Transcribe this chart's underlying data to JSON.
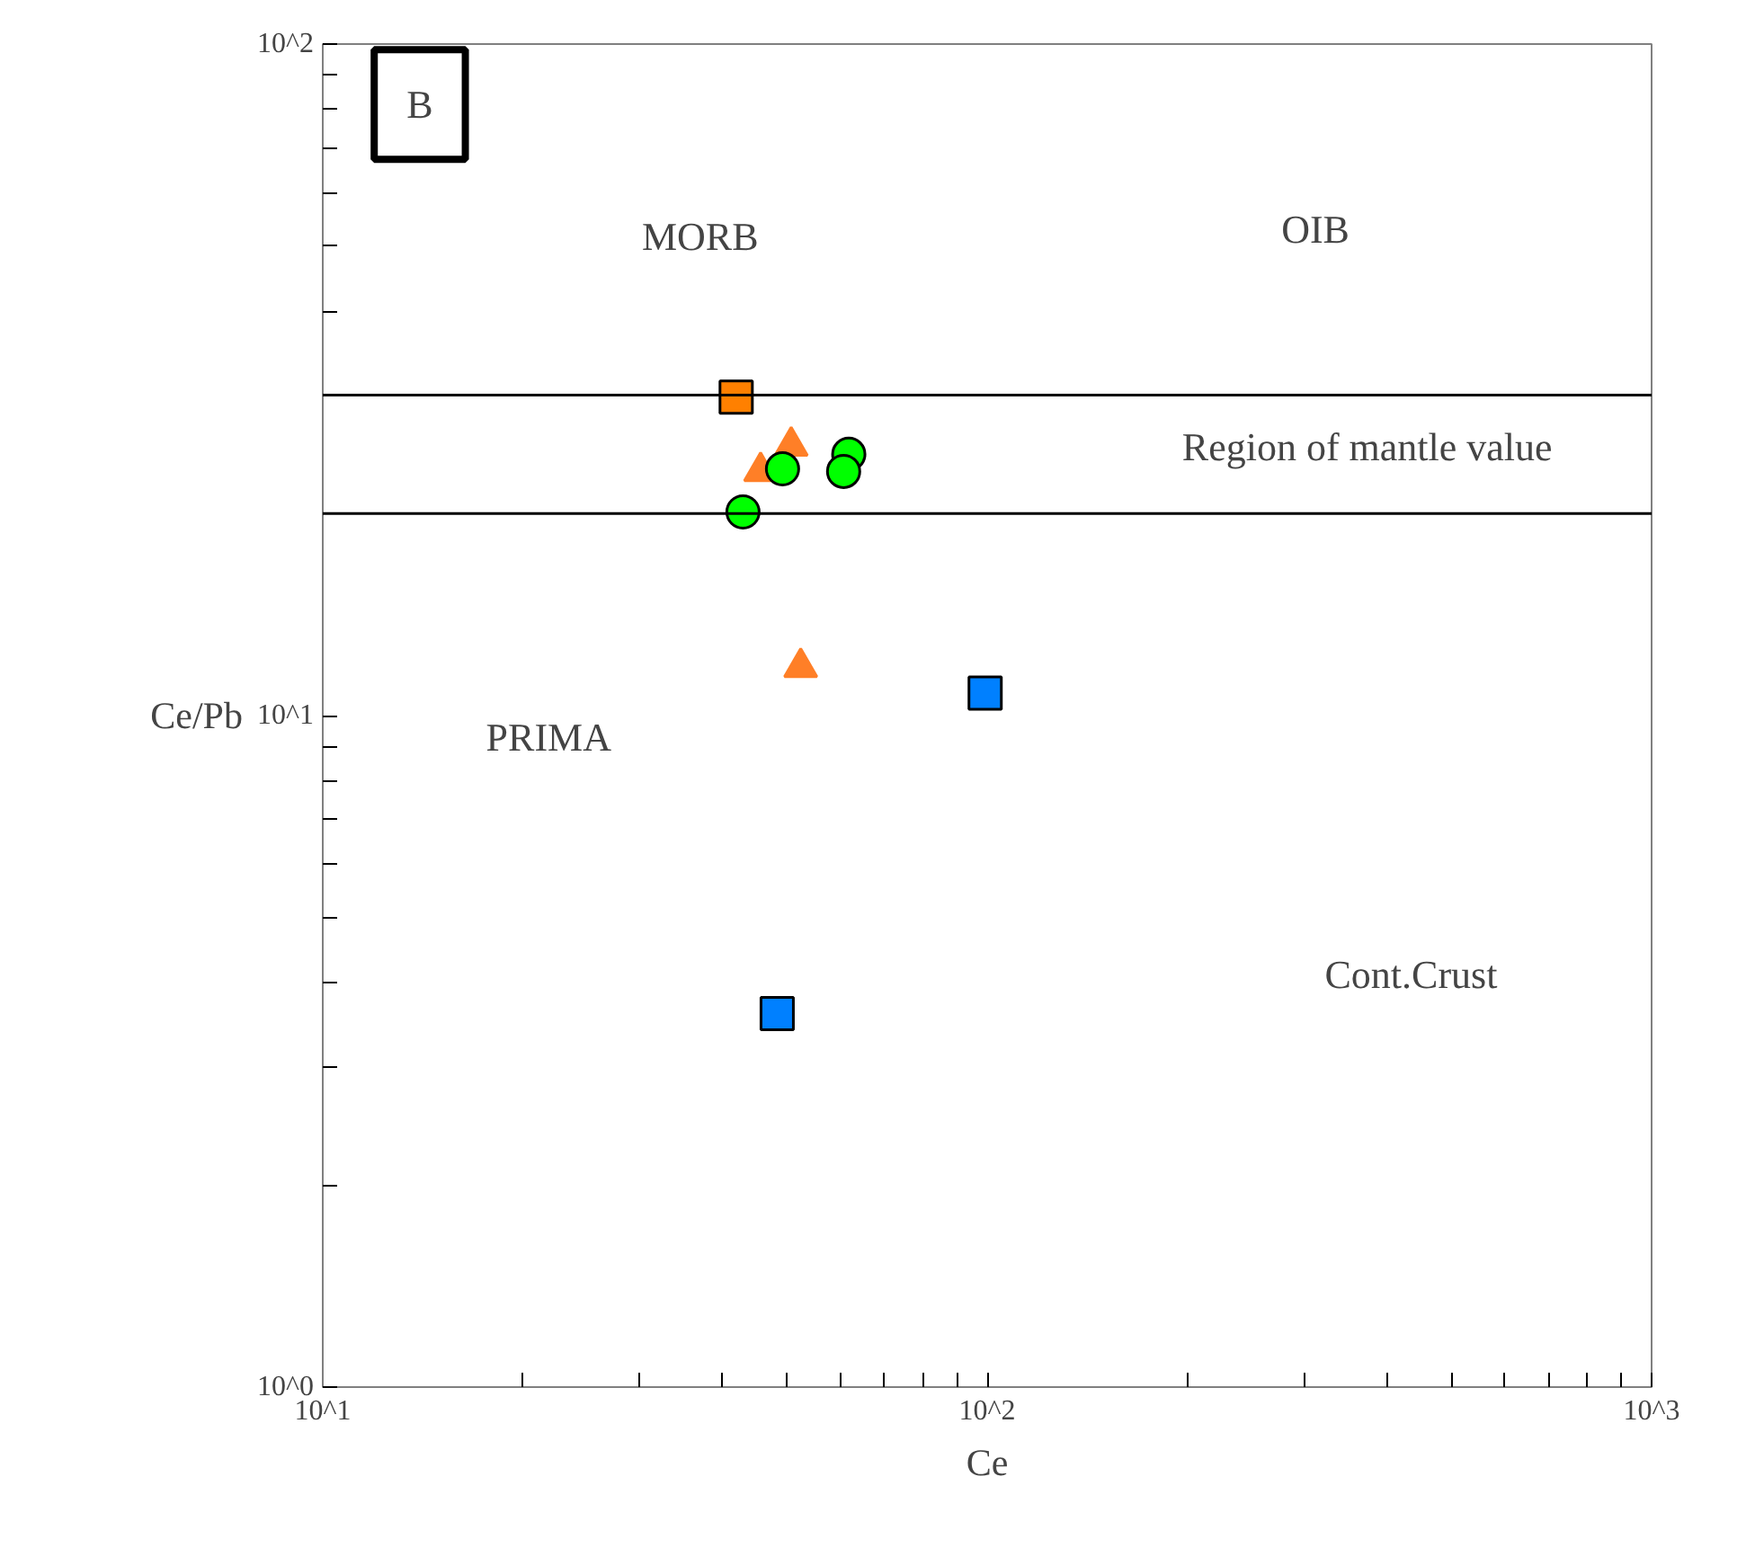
{
  "chart_data": {
    "type": "scatter",
    "xlabel": "Ce",
    "ylabel": "Ce/Pb",
    "log": "xy",
    "grid": false,
    "xlim": [
      10,
      1000
    ],
    "ylim": [
      1,
      100
    ],
    "xticks": [
      {
        "value": 10,
        "label": "10^1"
      },
      {
        "value": 20,
        "label": null
      },
      {
        "value": 30,
        "label": null
      },
      {
        "value": 40,
        "label": null
      },
      {
        "value": 50,
        "label": null
      },
      {
        "value": 60,
        "label": null
      },
      {
        "value": 70,
        "label": null
      },
      {
        "value": 80,
        "label": null
      },
      {
        "value": 90,
        "label": null
      },
      {
        "value": 100,
        "label": "10^2"
      },
      {
        "value": 200,
        "label": null
      },
      {
        "value": 300,
        "label": null
      },
      {
        "value": 400,
        "label": null
      },
      {
        "value": 500,
        "label": null
      },
      {
        "value": 600,
        "label": null
      },
      {
        "value": 700,
        "label": null
      },
      {
        "value": 800,
        "label": null
      },
      {
        "value": 900,
        "label": null
      },
      {
        "value": 1000,
        "label": "10^3"
      }
    ],
    "yticks": [
      {
        "value": 1,
        "label": "10^0"
      },
      {
        "value": 2,
        "label": null
      },
      {
        "value": 3,
        "label": null
      },
      {
        "value": 4,
        "label": null
      },
      {
        "value": 5,
        "label": null
      },
      {
        "value": 6,
        "label": null
      },
      {
        "value": 7,
        "label": null
      },
      {
        "value": 8,
        "label": null
      },
      {
        "value": 9,
        "label": null
      },
      {
        "value": 10,
        "label": "10^1"
      },
      {
        "value": 20,
        "label": null
      },
      {
        "value": 30,
        "label": null
      },
      {
        "value": 40,
        "label": null
      },
      {
        "value": 50,
        "label": null
      },
      {
        "value": 60,
        "label": null
      },
      {
        "value": 70,
        "label": null
      },
      {
        "value": 80,
        "label": null
      },
      {
        "value": 90,
        "label": null
      },
      {
        "value": 100,
        "label": "10^2"
      }
    ],
    "series": [
      {
        "color": "#ff8000",
        "marker": "square",
        "x": [
          41.9
        ],
        "values": [
          29.8
        ]
      },
      {
        "color": "#ff7f27",
        "marker": "triangle",
        "x": [
          45.6,
          50.7,
          52.4
        ],
        "values": [
          23.1,
          25.2,
          11.8
        ]
      },
      {
        "color": "#00ff00",
        "marker": "circle",
        "x": [
          42.9,
          49.2,
          61.9,
          60.8
        ],
        "values": [
          20.1,
          23.3,
          24.5,
          23.1
        ]
      },
      {
        "color": "#0080ff",
        "marker": "square",
        "x": [
          99.3,
          48.3
        ],
        "values": [
          10.8,
          3.6
        ]
      }
    ],
    "ref_lines": [
      {
        "axis": "y",
        "value": 30,
        "color": "#000000"
      },
      {
        "axis": "y",
        "value": 20,
        "color": "#000000"
      }
    ],
    "annotations": [
      "B",
      "MORB",
      "OIB",
      "Region of mantle value",
      "PRIMA",
      "Cont.Crust"
    ]
  }
}
